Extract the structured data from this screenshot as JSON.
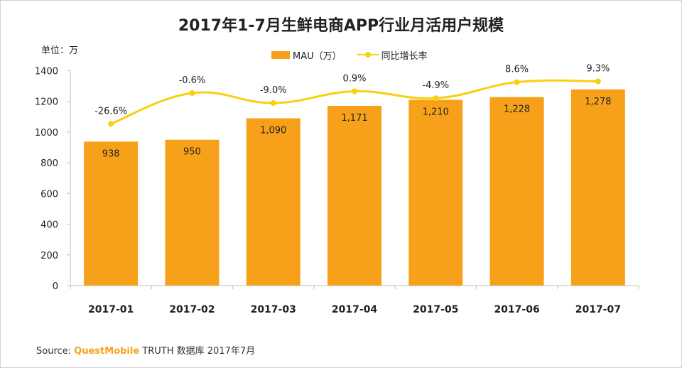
{
  "page": {
    "title": "2017年1-7月生鲜电商APP行业月活用户规模",
    "unit_label": "单位：万",
    "source": {
      "prefix": "Source:",
      "brand": "QuestMobile",
      "rest": "TRUTH 数据库 2017年7月"
    }
  },
  "legend": {
    "bar_label": "MAU（万）",
    "line_label": "同比增长率"
  },
  "colors": {
    "bar": "#f7a11a",
    "line": "#f9cf0f",
    "axis": "#bfbfbf",
    "text": "#222222"
  },
  "chart_data": {
    "type": "bar",
    "title": "2017年1-7月生鲜电商APP行业月活用户规模",
    "categories": [
      "2017-01",
      "2017-02",
      "2017-03",
      "2017-04",
      "2017-05",
      "2017-06",
      "2017-07"
    ],
    "y_ticks": [
      "0",
      "200",
      "400",
      "600",
      "800",
      "1000",
      "1200",
      "1400"
    ],
    "ylim": [
      0,
      1400
    ],
    "grid": false,
    "legend_position": "top-center",
    "series": [
      {
        "name": "MAU（万）",
        "type": "bar",
        "values": [
          938,
          950,
          1090,
          1171,
          1210,
          1228,
          1278
        ],
        "labels": [
          "938",
          "950",
          "1,090",
          "1,171",
          "1,210",
          "1,228",
          "1,278"
        ]
      },
      {
        "name": "同比增长率",
        "type": "line",
        "values": [
          -26.6,
          -0.6,
          -9.0,
          0.9,
          -4.9,
          8.6,
          9.3
        ],
        "labels": [
          "-26.6%",
          "-0.6%",
          "-9.0%",
          "0.9%",
          "-4.9%",
          "8.6%",
          "9.3%"
        ]
      }
    ]
  }
}
